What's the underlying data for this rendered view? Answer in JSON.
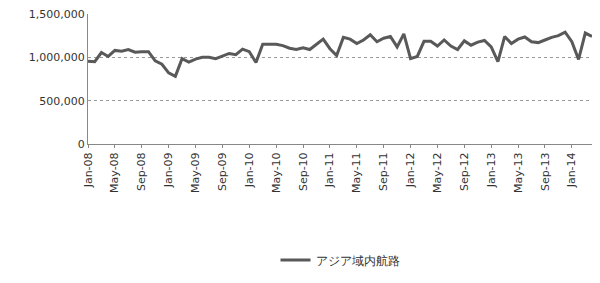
{
  "chart_data": {
    "type": "line",
    "categories": [
      "Jan-08",
      null,
      null,
      null,
      "May-08",
      null,
      null,
      null,
      "Sep-08",
      null,
      null,
      null,
      "Jan-09",
      null,
      null,
      null,
      "May-09",
      null,
      null,
      null,
      "Sep-09",
      null,
      null,
      null,
      "Jan-10",
      null,
      null,
      null,
      "May-10",
      null,
      null,
      null,
      "Sep-10",
      null,
      null,
      null,
      "Jan-11",
      null,
      null,
      null,
      "May-11",
      null,
      null,
      null,
      "Sep-11",
      null,
      null,
      null,
      "Jan-12",
      null,
      null,
      null,
      "May-12",
      null,
      null,
      null,
      "Sep-12",
      null,
      null,
      null,
      "Jan-13",
      null,
      null,
      null,
      "May-13",
      null,
      null,
      null,
      "Sep-13",
      null,
      null,
      null,
      "Jan-14",
      null,
      null,
      null
    ],
    "series": [
      {
        "name": "アジア域内航路",
        "color": "#595959",
        "values": [
          955000,
          950000,
          1055000,
          1010000,
          1080000,
          1070000,
          1090000,
          1060000,
          1065000,
          1065000,
          960000,
          920000,
          820000,
          780000,
          985000,
          945000,
          980000,
          1000000,
          1000000,
          985000,
          1015000,
          1045000,
          1030000,
          1095000,
          1065000,
          940000,
          1150000,
          1150000,
          1150000,
          1135000,
          1105000,
          1090000,
          1110000,
          1090000,
          1145000,
          1210000,
          1100000,
          1020000,
          1230000,
          1210000,
          1160000,
          1200000,
          1260000,
          1180000,
          1220000,
          1240000,
          1120000,
          1270000,
          985000,
          1010000,
          1185000,
          1185000,
          1130000,
          1200000,
          1130000,
          1090000,
          1190000,
          1140000,
          1175000,
          1195000,
          1120000,
          950000,
          1240000,
          1160000,
          1210000,
          1235000,
          1180000,
          1170000,
          1200000,
          1230000,
          1250000,
          1290000,
          1180000,
          975000,
          1280000,
          1240000
        ]
      }
    ],
    "ylim": [
      0,
      1500000
    ],
    "yticks": [
      {
        "value": 0,
        "label": "0"
      },
      {
        "value": 500000,
        "label": "500,000"
      },
      {
        "value": 1000000,
        "label": "1,000,000"
      },
      {
        "value": 1500000,
        "label": "1,500,000"
      }
    ],
    "grid": true,
    "legend": "bottom"
  }
}
